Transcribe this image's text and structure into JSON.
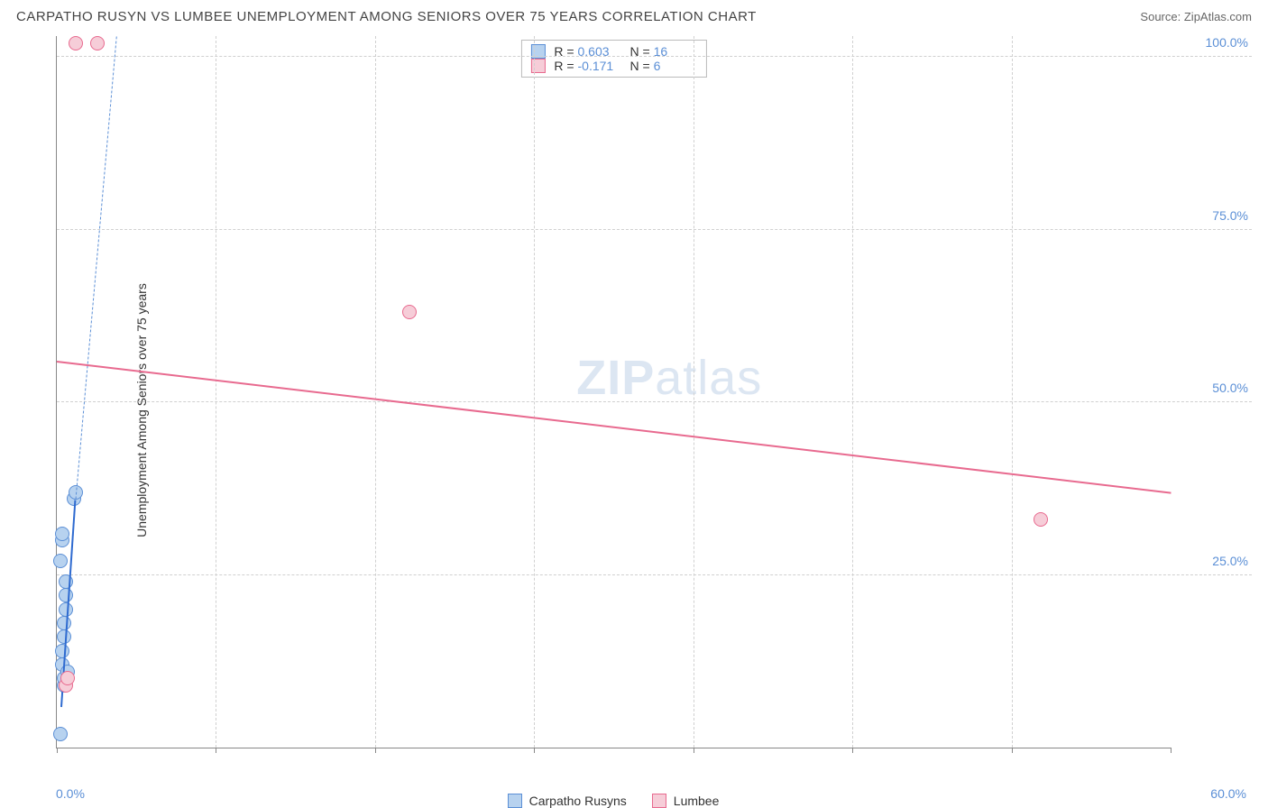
{
  "header": {
    "title": "CARPATHO RUSYN VS LUMBEE UNEMPLOYMENT AMONG SENIORS OVER 75 YEARS CORRELATION CHART",
    "source_label": "Source:",
    "source_name": "ZipAtlas.com"
  },
  "ylabel": "Unemployment Among Seniors over 75 years",
  "watermark": {
    "bold": "ZIP",
    "rest": "atlas"
  },
  "chart": {
    "type": "scatter",
    "xlim": [
      0,
      60
    ],
    "ylim": [
      0,
      103
    ],
    "x_ticks": [
      0,
      8.57,
      17.14,
      25.71,
      34.29,
      42.86,
      51.43,
      60
    ],
    "x_tick_labels": {
      "first": "0.0%",
      "last": "60.0%"
    },
    "y_gridlines": [
      25,
      50,
      75,
      100
    ],
    "y_tick_labels": [
      "25.0%",
      "50.0%",
      "75.0%",
      "100.0%"
    ],
    "grid_color": "#d0d0d0",
    "axis_color": "#888888",
    "background_color": "#ffffff",
    "tick_label_color": "#5b8fd6",
    "point_radius": 8,
    "series": [
      {
        "name": "Carpatho Rusyns",
        "fill": "#b7d2ef",
        "stroke": "#5b8fd6",
        "stats": {
          "R": "0.603",
          "N": "16"
        },
        "points": [
          {
            "x": 0.2,
            "y": 2
          },
          {
            "x": 0.3,
            "y": 12
          },
          {
            "x": 0.3,
            "y": 14
          },
          {
            "x": 0.4,
            "y": 16
          },
          {
            "x": 0.4,
            "y": 18
          },
          {
            "x": 0.5,
            "y": 20
          },
          {
            "x": 0.5,
            "y": 22
          },
          {
            "x": 0.5,
            "y": 24
          },
          {
            "x": 0.2,
            "y": 27
          },
          {
            "x": 0.3,
            "y": 30
          },
          {
            "x": 0.3,
            "y": 31
          },
          {
            "x": 0.4,
            "y": 9
          },
          {
            "x": 0.4,
            "y": 10
          },
          {
            "x": 0.6,
            "y": 11
          },
          {
            "x": 0.9,
            "y": 36
          },
          {
            "x": 1.0,
            "y": 37
          }
        ],
        "trend": {
          "solid": {
            "x1": 0.25,
            "y1": 6,
            "x2": 1.0,
            "y2": 36,
            "color": "#2f6bd0"
          },
          "dashed": {
            "x1": 1.0,
            "y1": 36,
            "x2": 3.2,
            "y2": 103,
            "color": "#5b8fd6"
          }
        }
      },
      {
        "name": "Lumbee",
        "fill": "#f6cdd8",
        "stroke": "#e86a8f",
        "stats": {
          "R": "-0.171",
          "N": "6"
        },
        "points": [
          {
            "x": 1.0,
            "y": 102
          },
          {
            "x": 2.2,
            "y": 102
          },
          {
            "x": 19,
            "y": 63
          },
          {
            "x": 53,
            "y": 33
          },
          {
            "x": 0.5,
            "y": 9
          },
          {
            "x": 0.6,
            "y": 10
          }
        ],
        "trend": {
          "solid": {
            "x1": 0,
            "y1": 56,
            "x2": 60,
            "y2": 37,
            "color": "#e86a8f"
          }
        }
      }
    ],
    "legend_bottom": [
      {
        "label": "Carpatho Rusyns",
        "fill": "#b7d2ef",
        "stroke": "#5b8fd6"
      },
      {
        "label": "Lumbee",
        "fill": "#f6cdd8",
        "stroke": "#e86a8f"
      }
    ]
  }
}
